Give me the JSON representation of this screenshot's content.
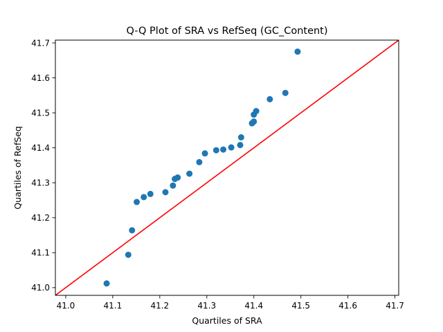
{
  "chart_data": {
    "type": "scatter",
    "title": "Q-Q Plot of SRA vs RefSeq (GC_Content)",
    "xlabel": "Quartiles of SRA",
    "ylabel": "Quartiles of RefSeq",
    "xlim": [
      40.978,
      41.708
    ],
    "ylim": [
      40.978,
      41.708
    ],
    "xticks": [
      "41.0",
      "41.1",
      "41.2",
      "41.3",
      "41.4",
      "41.5",
      "41.6",
      "41.7"
    ],
    "yticks": [
      "41.0",
      "41.1",
      "41.2",
      "41.3",
      "41.4",
      "41.5",
      "41.6",
      "41.7"
    ],
    "grid": false,
    "point_color": "#1f77b4",
    "reference_line": {
      "x": [
        40.978,
        41.708
      ],
      "y": [
        40.978,
        41.708
      ],
      "color": "#ff0000"
    },
    "points": {
      "x": [
        41.087,
        41.133,
        41.141,
        41.151,
        41.166,
        41.18,
        41.212,
        41.228,
        41.232,
        41.238,
        41.263,
        41.284,
        41.296,
        41.32,
        41.335,
        41.352,
        41.371,
        41.373,
        41.396,
        41.4,
        41.4,
        41.405,
        41.434,
        41.467,
        41.493
      ],
      "y": [
        41.012,
        41.094,
        41.164,
        41.245,
        41.259,
        41.268,
        41.273,
        41.292,
        41.311,
        41.315,
        41.326,
        41.359,
        41.384,
        41.393,
        41.395,
        41.401,
        41.408,
        41.43,
        41.47,
        41.475,
        41.495,
        41.505,
        41.539,
        41.557,
        41.675
      ]
    }
  }
}
